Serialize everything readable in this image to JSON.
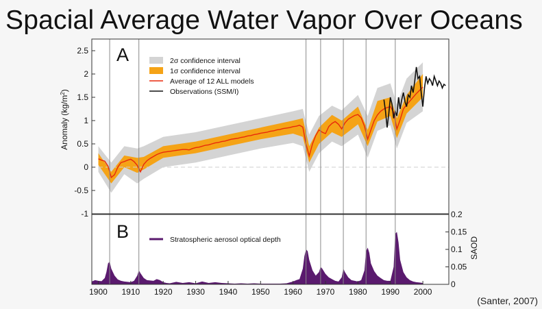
{
  "slide": {
    "title": "Spacial Average Water Vapor Over Oceans",
    "citation": "(Santer, 2007)"
  },
  "colors": {
    "ci2": "#d4d4d4",
    "ci1": "#f5a316",
    "model": "#e8290b",
    "obs": "#111111",
    "saod": "#5a1a6e",
    "eruption_line": "#8a8a8a",
    "frame": "#333333"
  },
  "chart_data": [
    {
      "type": "line",
      "panel": "A",
      "ylabel": "Anomaly (kg/m2)",
      "ylabel_parts": [
        "Anomaly (kg/m",
        "2",
        ")"
      ],
      "xlim": [
        1898,
        2008
      ],
      "ylim": [
        -1,
        2.75
      ],
      "y_ticks": [
        -1,
        -0.5,
        0,
        0.5,
        1,
        1.5,
        2,
        2.5
      ],
      "y_tick_labels": [
        "-1",
        "-0.5",
        "0",
        "0.5",
        "1",
        "1.5",
        "2",
        "2.5"
      ],
      "legend": [
        {
          "key": "ci2",
          "label": "2σ confidence interval"
        },
        {
          "key": "ci1",
          "label": "1σ confidence interval"
        },
        {
          "key": "model",
          "label": "Average of 12 ALL models"
        },
        {
          "key": "obs",
          "label": "Observations (SSM/I)"
        }
      ],
      "model_mean": {
        "name": "Average of 12 ALL models",
        "x": [
          1900,
          1901,
          1902,
          1903,
          1904,
          1905,
          1906,
          1907,
          1908,
          1909,
          1910,
          1911,
          1912,
          1913,
          1914,
          1915,
          1916,
          1917,
          1918,
          1919,
          1920,
          1921,
          1922,
          1923,
          1924,
          1925,
          1926,
          1927,
          1928,
          1929,
          1930,
          1931,
          1932,
          1933,
          1934,
          1935,
          1936,
          1937,
          1938,
          1939,
          1940,
          1941,
          1942,
          1943,
          1944,
          1945,
          1946,
          1947,
          1948,
          1949,
          1950,
          1951,
          1952,
          1953,
          1954,
          1955,
          1956,
          1957,
          1958,
          1959,
          1960,
          1961,
          1962,
          1963,
          1964,
          1965,
          1966,
          1967,
          1968,
          1969,
          1970,
          1971,
          1972,
          1973,
          1974,
          1975,
          1976,
          1977,
          1978,
          1979,
          1980,
          1981,
          1982,
          1983,
          1984,
          1985,
          1986,
          1987,
          1988,
          1989,
          1990,
          1991,
          1992,
          1993,
          1994,
          1995,
          1996,
          1997,
          1998,
          1999,
          2000
        ],
        "y": [
          0.18,
          0.15,
          0.13,
          0.02,
          -0.22,
          -0.16,
          0.0,
          0.1,
          0.12,
          0.15,
          0.17,
          0.12,
          0.04,
          -0.1,
          0.06,
          0.14,
          0.19,
          0.23,
          0.27,
          0.3,
          0.32,
          0.33,
          0.34,
          0.35,
          0.36,
          0.37,
          0.38,
          0.38,
          0.37,
          0.4,
          0.42,
          0.43,
          0.45,
          0.47,
          0.48,
          0.5,
          0.52,
          0.53,
          0.55,
          0.56,
          0.58,
          0.6,
          0.61,
          0.62,
          0.64,
          0.65,
          0.67,
          0.68,
          0.7,
          0.71,
          0.73,
          0.74,
          0.75,
          0.77,
          0.78,
          0.8,
          0.81,
          0.83,
          0.84,
          0.85,
          0.87,
          0.88,
          0.9,
          0.86,
          0.5,
          0.24,
          0.5,
          0.68,
          0.8,
          0.75,
          0.72,
          0.87,
          0.94,
          0.98,
          0.92,
          0.82,
          0.95,
          1.03,
          1.07,
          1.11,
          1.13,
          1.06,
          0.88,
          0.6,
          0.8,
          1.0,
          1.12,
          1.2,
          1.25,
          1.28,
          1.3,
          1.18,
          0.82,
          1.02,
          1.25,
          1.34,
          1.42,
          1.5,
          1.58,
          1.65,
          1.72
        ]
      },
      "ci_1sigma": {
        "name": "1σ confidence interval",
        "x": [
          1900,
          1904,
          1908,
          1912,
          1914,
          1920,
          1930,
          1940,
          1950,
          1960,
          1963,
          1965,
          1968,
          1972,
          1975,
          1980,
          1983,
          1986,
          1990,
          1992,
          1995,
          2000
        ],
        "lower": [
          0.05,
          -0.35,
          0.0,
          -0.12,
          -0.05,
          0.2,
          0.3,
          0.45,
          0.6,
          0.72,
          0.65,
          0.1,
          0.5,
          0.75,
          0.65,
          0.92,
          0.45,
          0.98,
          1.1,
          0.62,
          1.15,
          1.5
        ],
        "upper": [
          0.3,
          -0.1,
          0.25,
          0.2,
          0.22,
          0.45,
          0.55,
          0.7,
          0.85,
          1.0,
          1.05,
          0.45,
          0.85,
          1.12,
          1.0,
          1.3,
          0.8,
          1.42,
          1.5,
          1.05,
          1.55,
          2.0
        ]
      },
      "ci_2sigma": {
        "name": "2σ confidence interval",
        "x": [
          1900,
          1904,
          1908,
          1912,
          1914,
          1920,
          1930,
          1940,
          1950,
          1960,
          1963,
          1965,
          1968,
          1972,
          1975,
          1980,
          1983,
          1986,
          1990,
          1992,
          1995,
          2000
        ],
        "lower": [
          -0.1,
          -0.55,
          -0.15,
          -0.35,
          -0.25,
          0.0,
          0.1,
          0.25,
          0.4,
          0.52,
          0.45,
          -0.1,
          0.3,
          0.55,
          0.45,
          0.7,
          0.2,
          0.78,
          0.9,
          0.4,
          0.95,
          1.2
        ],
        "upper": [
          0.45,
          0.1,
          0.45,
          0.4,
          0.45,
          0.65,
          0.75,
          0.9,
          1.05,
          1.2,
          1.25,
          0.7,
          1.1,
          1.32,
          1.22,
          1.55,
          1.1,
          1.7,
          1.8,
          1.35,
          1.9,
          2.25
        ]
      },
      "observations": {
        "name": "Observations (SSM/I)",
        "x": [
          1988,
          1988.5,
          1989,
          1989.5,
          1990,
          1990.5,
          1991,
          1991.5,
          1992,
          1992.5,
          1993,
          1993.5,
          1994,
          1994.5,
          1995,
          1995.5,
          1996,
          1996.5,
          1997,
          1997.5,
          1998,
          1998.5,
          1999,
          1999.5,
          2000,
          2000.5,
          2001,
          2001.5,
          2002,
          2002.5,
          2003,
          2003.5,
          2004,
          2004.5,
          2005,
          2005.5,
          2006,
          2006.5,
          2007
        ],
        "y": [
          1.45,
          1.2,
          0.85,
          1.15,
          1.5,
          1.35,
          1.05,
          1.2,
          1.1,
          1.5,
          1.25,
          1.45,
          1.6,
          1.4,
          1.3,
          1.55,
          1.5,
          1.75,
          1.6,
          1.85,
          2.15,
          1.9,
          1.95,
          1.6,
          1.3,
          1.7,
          1.95,
          1.8,
          1.9,
          1.85,
          1.75,
          1.95,
          1.85,
          1.75,
          1.85,
          1.8,
          1.7,
          1.78,
          1.75
        ]
      },
      "eruptions": [
        1903.5,
        1912.5,
        1964,
        1968.5,
        1975.5,
        1982.5,
        1991.5
      ]
    },
    {
      "type": "area",
      "panel": "B",
      "ylabel": "SAOD",
      "xlim": [
        1898,
        2008
      ],
      "ylim": [
        0,
        0.2
      ],
      "y_ticks": [
        0,
        0.05,
        0.1,
        0.15,
        0.2
      ],
      "y_tick_labels": [
        "0",
        "0.05",
        "0.1",
        "0.15",
        "0.2"
      ],
      "x_ticks": [
        1900,
        1910,
        1920,
        1930,
        1940,
        1950,
        1960,
        1970,
        1980,
        1990,
        2000
      ],
      "x_tick_labels": [
        "1900",
        "1910",
        "1920",
        "1930",
        "1940",
        "1950",
        "1960",
        "1970",
        "1980",
        "1990",
        "2000"
      ],
      "legend": [
        {
          "key": "saod",
          "label": "Stratospheric aerosol optical depth"
        }
      ],
      "saod": {
        "name": "Stratospheric aerosol optical depth",
        "x": [
          1898,
          1899,
          1900,
          1901,
          1902,
          1902.5,
          1903,
          1903.5,
          1904,
          1905,
          1906,
          1907,
          1908,
          1910,
          1911,
          1912,
          1912.5,
          1913,
          1914,
          1915,
          1917,
          1918,
          1919,
          1920,
          1921,
          1922,
          1924,
          1926,
          1928,
          1930,
          1932,
          1934,
          1936,
          1938,
          1940,
          1942,
          1944,
          1946,
          1948,
          1950,
          1952,
          1954,
          1956,
          1958,
          1960,
          1961,
          1962,
          1963,
          1963.5,
          1964,
          1964.5,
          1965,
          1966,
          1967,
          1968,
          1968.5,
          1969,
          1970,
          1971,
          1972,
          1973,
          1974,
          1975,
          1975.5,
          1976,
          1977,
          1978,
          1979,
          1980,
          1981,
          1982,
          1982.5,
          1983,
          1983.5,
          1984,
          1985,
          1986,
          1987,
          1988,
          1989,
          1990,
          1991,
          1991.5,
          1992,
          1992.5,
          1993,
          1994,
          1995,
          1996,
          1997,
          1998,
          1999,
          2000
        ],
        "y": [
          0.008,
          0.012,
          0.01,
          0.009,
          0.018,
          0.035,
          0.06,
          0.065,
          0.045,
          0.025,
          0.014,
          0.01,
          0.008,
          0.006,
          0.01,
          0.025,
          0.04,
          0.032,
          0.018,
          0.012,
          0.01,
          0.015,
          0.012,
          0.006,
          0.004,
          0.003,
          0.007,
          0.004,
          0.006,
          0.003,
          0.008,
          0.004,
          0.006,
          0.004,
          0.003,
          0.002,
          0.003,
          0.002,
          0.003,
          0.002,
          0.002,
          0.002,
          0.002,
          0.003,
          0.008,
          0.012,
          0.015,
          0.045,
          0.08,
          0.1,
          0.095,
          0.07,
          0.04,
          0.025,
          0.035,
          0.05,
          0.045,
          0.03,
          0.02,
          0.015,
          0.01,
          0.008,
          0.02,
          0.045,
          0.035,
          0.02,
          0.012,
          0.01,
          0.008,
          0.012,
          0.04,
          0.095,
          0.105,
          0.09,
          0.06,
          0.038,
          0.025,
          0.018,
          0.012,
          0.01,
          0.01,
          0.05,
          0.145,
          0.15,
          0.12,
          0.07,
          0.035,
          0.02,
          0.012,
          0.008,
          0.006,
          0.005,
          0.004
        ]
      }
    }
  ]
}
